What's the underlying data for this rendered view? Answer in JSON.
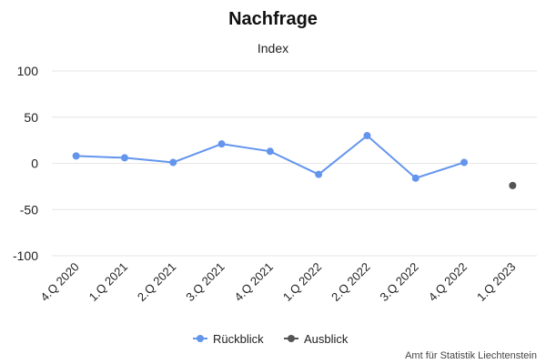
{
  "chart_data": {
    "type": "line",
    "title": "Nachfrage",
    "subtitle": "Index",
    "categories": [
      "4.Q 2020",
      "1.Q 2021",
      "2.Q 2021",
      "3.Q 2021",
      "4.Q 2021",
      "1.Q 2022",
      "2.Q 2022",
      "3.Q 2022",
      "4.Q 2022",
      "1.Q 2023"
    ],
    "series": [
      {
        "name": "Rückblick",
        "color": "#6495ED",
        "values": [
          8,
          6,
          1,
          21,
          13,
          -12,
          30,
          -16,
          1,
          null
        ]
      },
      {
        "name": "Ausblick",
        "color": "#555555",
        "values": [
          null,
          null,
          null,
          null,
          null,
          null,
          null,
          null,
          null,
          -24
        ]
      }
    ],
    "ylim": [
      -100,
      100
    ],
    "yticks": [
      100,
      50,
      0,
      -50,
      -100
    ],
    "grid": true,
    "legend_position": "bottom-center"
  },
  "credit": "Amt für Statistik Liechtenstein"
}
